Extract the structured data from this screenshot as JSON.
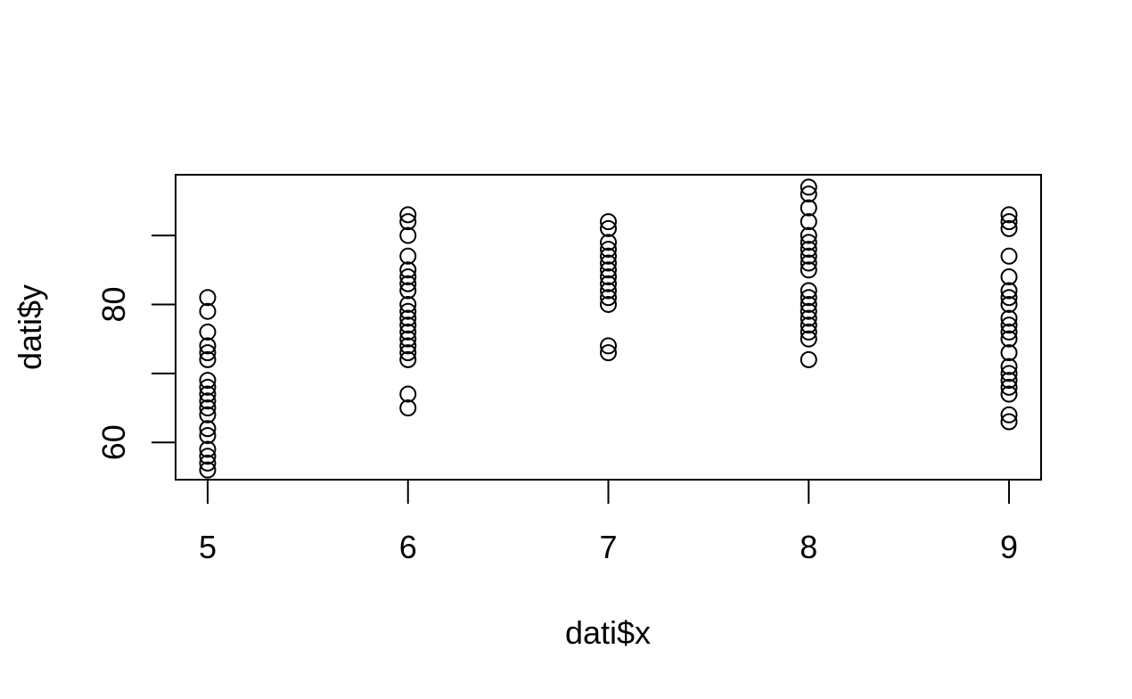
{
  "chart_data": {
    "type": "scatter",
    "title": "",
    "xlabel": "dati$x",
    "ylabel": "dati$y",
    "xlim": [
      4.84,
      9.16
    ],
    "ylim": [
      54.6,
      98.8
    ],
    "x_ticks": [
      5,
      6,
      7,
      8,
      9
    ],
    "y_ticks": [
      60,
      70,
      80,
      90
    ],
    "y_tick_labels": [
      "60",
      "",
      "80",
      ""
    ],
    "grid": false,
    "point_style": "open circle",
    "series": [
      {
        "points": [
          {
            "x": 5,
            "y": 81
          },
          {
            "x": 5,
            "y": 79
          },
          {
            "x": 5,
            "y": 76
          },
          {
            "x": 5,
            "y": 74
          },
          {
            "x": 5,
            "y": 73
          },
          {
            "x": 5,
            "y": 72
          },
          {
            "x": 5,
            "y": 69
          },
          {
            "x": 5,
            "y": 68
          },
          {
            "x": 5,
            "y": 67
          },
          {
            "x": 5,
            "y": 66
          },
          {
            "x": 5,
            "y": 65
          },
          {
            "x": 5,
            "y": 64
          },
          {
            "x": 5,
            "y": 62
          },
          {
            "x": 5,
            "y": 61
          },
          {
            "x": 5,
            "y": 59
          },
          {
            "x": 5,
            "y": 58
          },
          {
            "x": 5,
            "y": 57
          },
          {
            "x": 5,
            "y": 56
          },
          {
            "x": 6,
            "y": 93
          },
          {
            "x": 6,
            "y": 92
          },
          {
            "x": 6,
            "y": 90
          },
          {
            "x": 6,
            "y": 87
          },
          {
            "x": 6,
            "y": 85
          },
          {
            "x": 6,
            "y": 84
          },
          {
            "x": 6,
            "y": 83
          },
          {
            "x": 6,
            "y": 82
          },
          {
            "x": 6,
            "y": 80
          },
          {
            "x": 6,
            "y": 79
          },
          {
            "x": 6,
            "y": 78
          },
          {
            "x": 6,
            "y": 77
          },
          {
            "x": 6,
            "y": 76
          },
          {
            "x": 6,
            "y": 75
          },
          {
            "x": 6,
            "y": 74
          },
          {
            "x": 6,
            "y": 73
          },
          {
            "x": 6,
            "y": 72
          },
          {
            "x": 6,
            "y": 67
          },
          {
            "x": 6,
            "y": 65
          },
          {
            "x": 7,
            "y": 92
          },
          {
            "x": 7,
            "y": 91
          },
          {
            "x": 7,
            "y": 89
          },
          {
            "x": 7,
            "y": 88
          },
          {
            "x": 7,
            "y": 87
          },
          {
            "x": 7,
            "y": 86
          },
          {
            "x": 7,
            "y": 85
          },
          {
            "x": 7,
            "y": 84
          },
          {
            "x": 7,
            "y": 83
          },
          {
            "x": 7,
            "y": 82
          },
          {
            "x": 7,
            "y": 81
          },
          {
            "x": 7,
            "y": 80
          },
          {
            "x": 7,
            "y": 74
          },
          {
            "x": 7,
            "y": 73
          },
          {
            "x": 8,
            "y": 97
          },
          {
            "x": 8,
            "y": 96
          },
          {
            "x": 8,
            "y": 94
          },
          {
            "x": 8,
            "y": 92
          },
          {
            "x": 8,
            "y": 90
          },
          {
            "x": 8,
            "y": 89
          },
          {
            "x": 8,
            "y": 88
          },
          {
            "x": 8,
            "y": 87
          },
          {
            "x": 8,
            "y": 86
          },
          {
            "x": 8,
            "y": 85
          },
          {
            "x": 8,
            "y": 82
          },
          {
            "x": 8,
            "y": 81
          },
          {
            "x": 8,
            "y": 80
          },
          {
            "x": 8,
            "y": 79
          },
          {
            "x": 8,
            "y": 78
          },
          {
            "x": 8,
            "y": 77
          },
          {
            "x": 8,
            "y": 76
          },
          {
            "x": 8,
            "y": 75
          },
          {
            "x": 8,
            "y": 72
          },
          {
            "x": 9,
            "y": 93
          },
          {
            "x": 9,
            "y": 92
          },
          {
            "x": 9,
            "y": 91
          },
          {
            "x": 9,
            "y": 87
          },
          {
            "x": 9,
            "y": 84
          },
          {
            "x": 9,
            "y": 82
          },
          {
            "x": 9,
            "y": 81
          },
          {
            "x": 9,
            "y": 80
          },
          {
            "x": 9,
            "y": 78
          },
          {
            "x": 9,
            "y": 77
          },
          {
            "x": 9,
            "y": 76
          },
          {
            "x": 9,
            "y": 75
          },
          {
            "x": 9,
            "y": 73
          },
          {
            "x": 9,
            "y": 71
          },
          {
            "x": 9,
            "y": 70
          },
          {
            "x": 9,
            "y": 69
          },
          {
            "x": 9,
            "y": 68
          },
          {
            "x": 9,
            "y": 67
          },
          {
            "x": 9,
            "y": 64
          },
          {
            "x": 9,
            "y": 63
          }
        ]
      }
    ]
  }
}
